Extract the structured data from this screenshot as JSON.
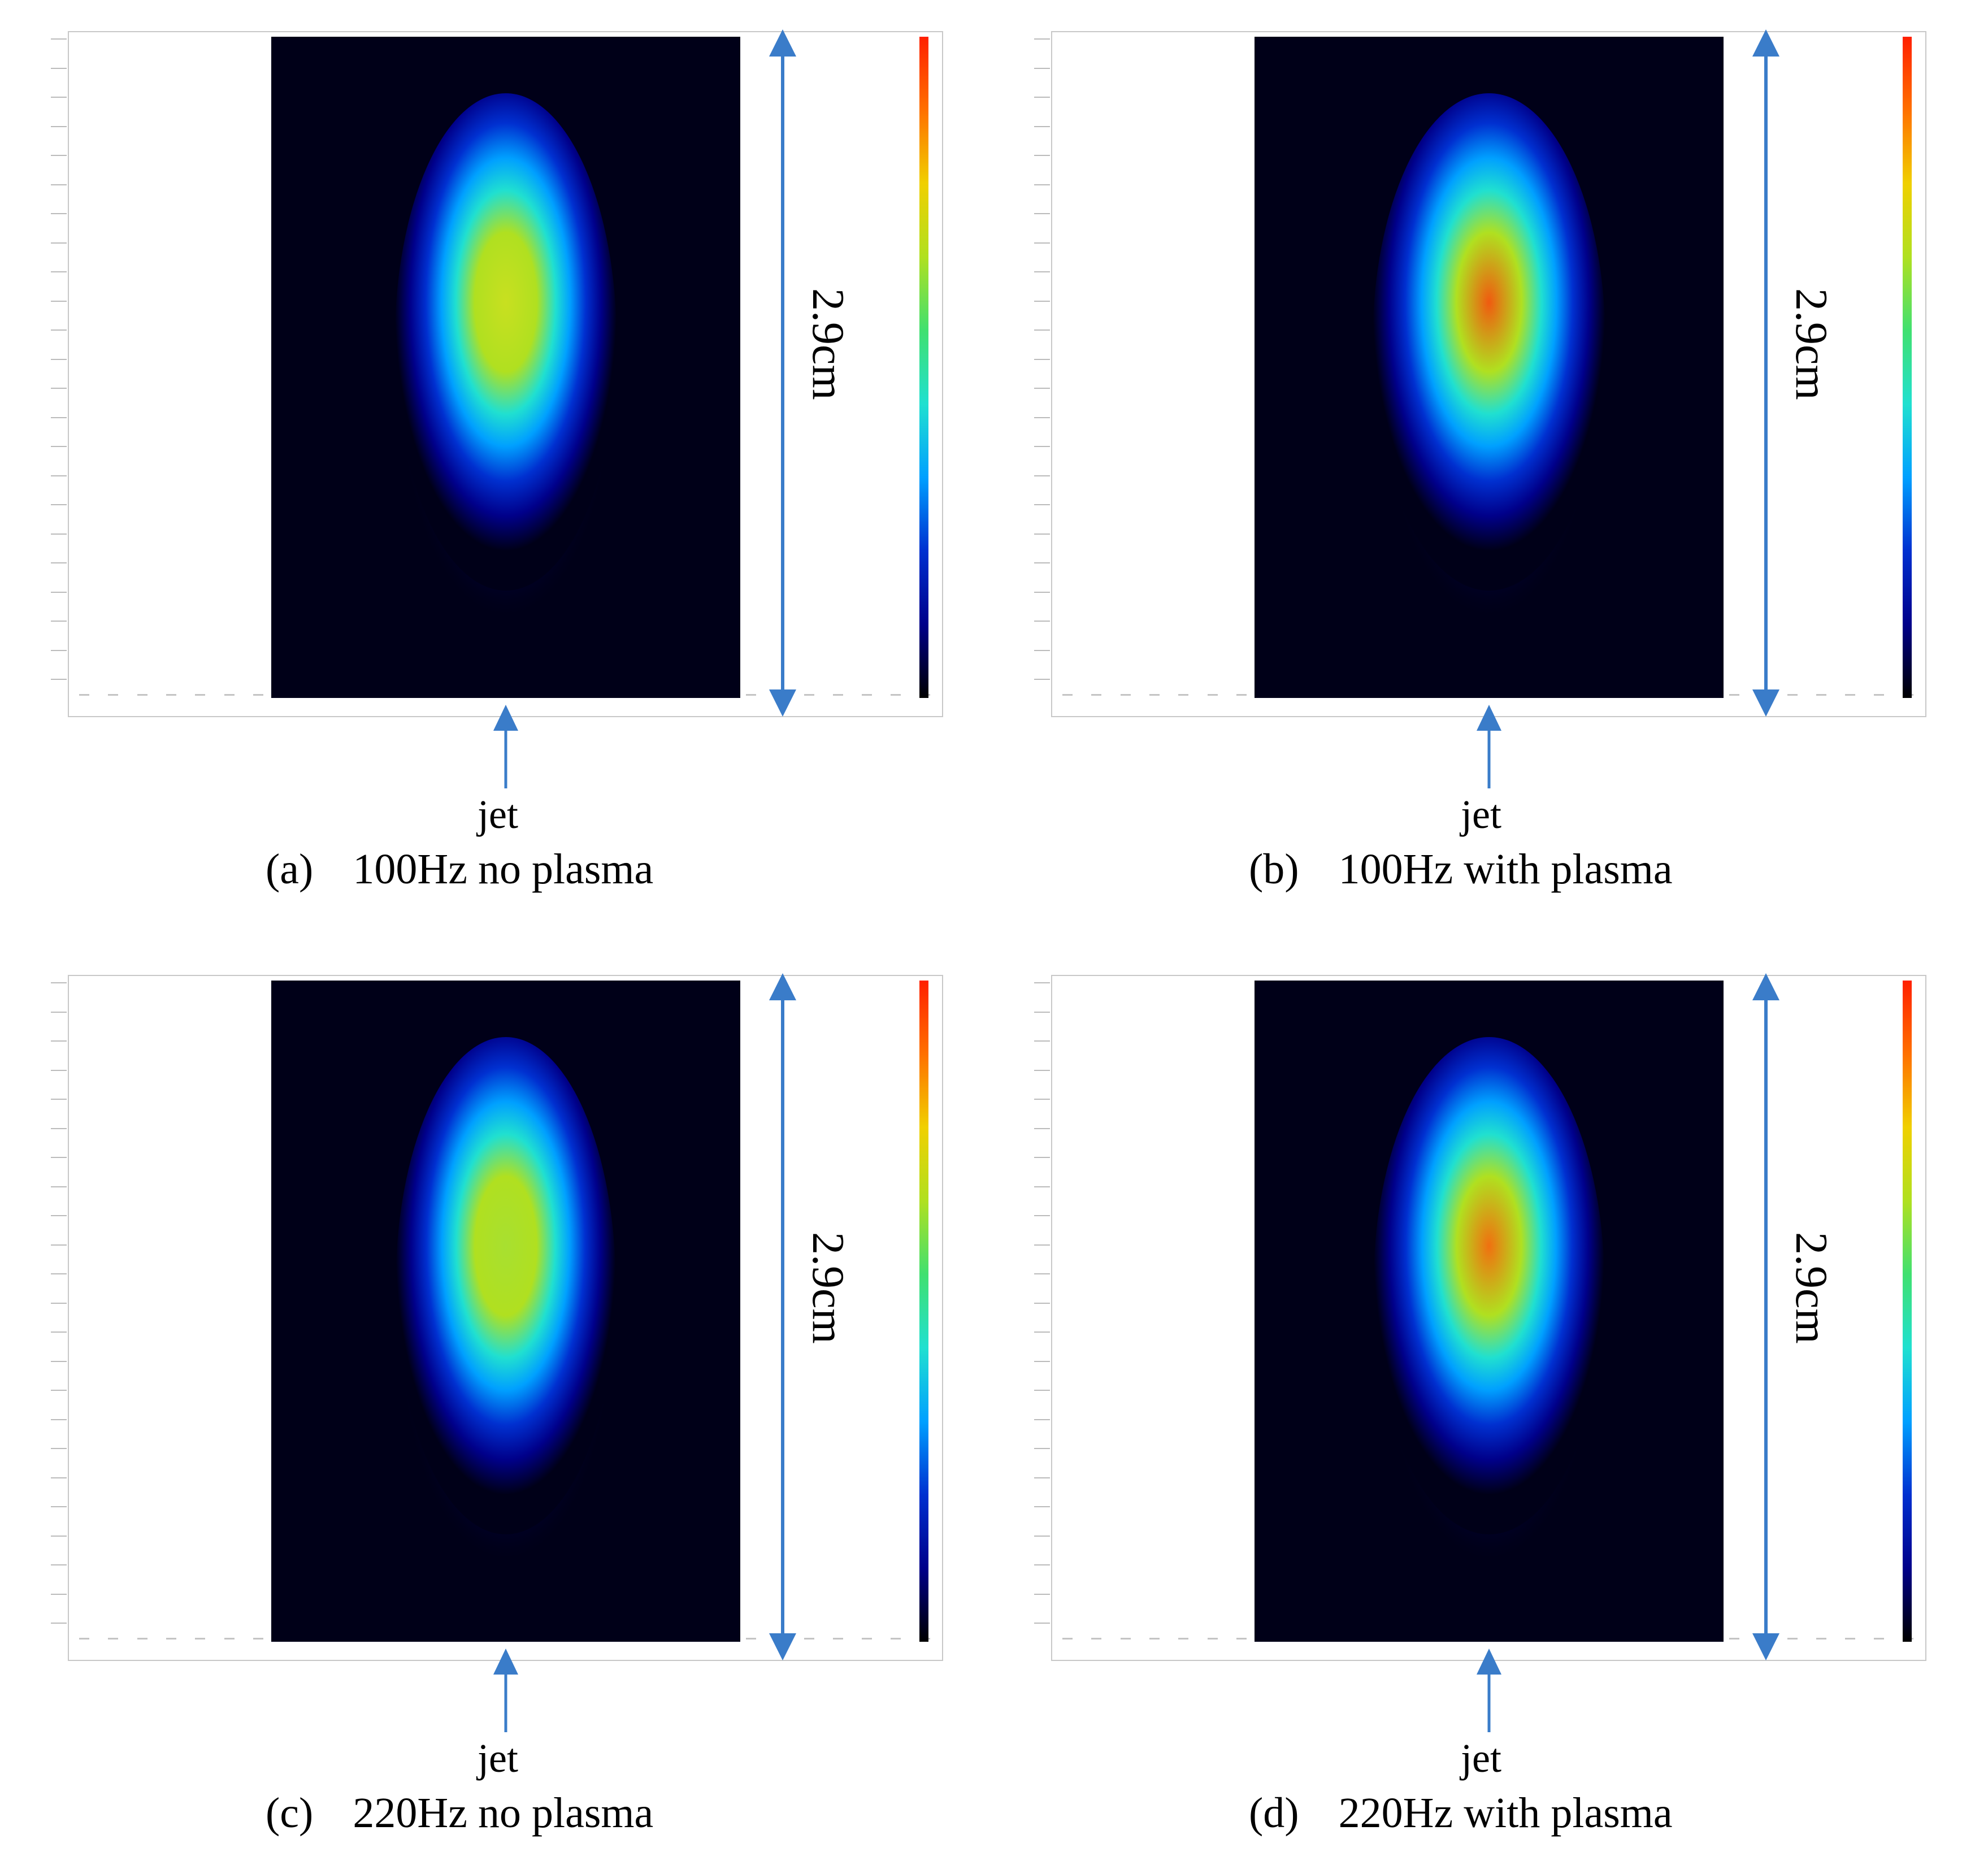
{
  "figure": {
    "panels": [
      {
        "letter": "(a)",
        "title": "100Hz no plasma",
        "dimension_label": "2.9cm",
        "jet_label": "jet",
        "peak_intensity": 0.66,
        "peak_color": "#c8e020"
      },
      {
        "letter": "(b)",
        "title": "100Hz with plasma",
        "dimension_label": "2.9cm",
        "jet_label": "jet",
        "peak_intensity": 0.9,
        "peak_color": "#f05a10"
      },
      {
        "letter": "(c)",
        "title": "220Hz no plasma",
        "dimension_label": "2.9cm",
        "jet_label": "jet",
        "peak_intensity": 0.62,
        "peak_color": "#a8e030"
      },
      {
        "letter": "(d)",
        "title": "220Hz with plasma",
        "dimension_label": "2.9cm",
        "jet_label": "jet",
        "peak_intensity": 0.86,
        "peak_color": "#f07010"
      }
    ],
    "colors": {
      "arrow": "#3a7cc9",
      "background_dark": "#000018",
      "colormap": [
        "#000000",
        "#00008a",
        "#0030d0",
        "#00a0ff",
        "#20e0d0",
        "#40e070",
        "#b0e020",
        "#f0d000",
        "#ff7000",
        "#ff2000"
      ]
    },
    "icons": {
      "dimension": "double-headed-arrow-icon",
      "jet": "up-arrow-icon"
    }
  }
}
